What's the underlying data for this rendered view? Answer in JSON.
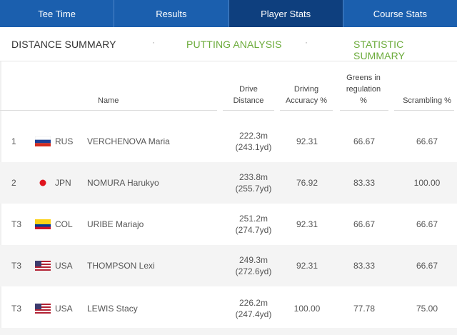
{
  "tabs": [
    {
      "label": "Tee Time",
      "active": false
    },
    {
      "label": "Results",
      "active": false
    },
    {
      "label": "Player Stats",
      "active": true
    },
    {
      "label": "Course Stats",
      "active": false
    }
  ],
  "subnav": {
    "distance_summary": "DISTANCE SUMMARY",
    "putting_analysis": "PUTTING ANALYSIS",
    "statistic_summary": "STATISTIC SUMMARY",
    "separator": "·"
  },
  "table": {
    "headers": {
      "name": "Name",
      "drive_distance": [
        "Drive",
        "Distance"
      ],
      "driving_accuracy": [
        "Driving",
        "Accuracy %"
      ],
      "gir": [
        "Greens in",
        "regulation",
        "%"
      ],
      "scrambling": "Scrambling %"
    },
    "rows": [
      {
        "pos": "1",
        "country": "RUS",
        "flag": "rus",
        "name": "VERCHENOVA Maria",
        "dist_m": "222.3m",
        "dist_yd": "(243.1yd)",
        "accuracy": "92.31",
        "gir": "66.67",
        "scrambling": "66.67"
      },
      {
        "pos": "2",
        "country": "JPN",
        "flag": "jpn",
        "name": "NOMURA Harukyo",
        "dist_m": "233.8m",
        "dist_yd": "(255.7yd)",
        "accuracy": "76.92",
        "gir": "83.33",
        "scrambling": "100.00"
      },
      {
        "pos": "T3",
        "country": "COL",
        "flag": "col",
        "name": "URIBE Mariajo",
        "dist_m": "251.2m",
        "dist_yd": "(274.7yd)",
        "accuracy": "92.31",
        "gir": "66.67",
        "scrambling": "66.67"
      },
      {
        "pos": "T3",
        "country": "USA",
        "flag": "usa",
        "name": "THOMPSON Lexi",
        "dist_m": "249.3m",
        "dist_yd": "(272.6yd)",
        "accuracy": "92.31",
        "gir": "83.33",
        "scrambling": "66.67"
      },
      {
        "pos": "T3",
        "country": "USA",
        "flag": "usa",
        "name": "LEWIS Stacy",
        "dist_m": "226.2m",
        "dist_yd": "(247.4yd)",
        "accuracy": "100.00",
        "gir": "77.78",
        "scrambling": "75.00"
      }
    ]
  },
  "colors": {
    "tab_bar": "#1b5fae",
    "tab_active": "#0e3f7e",
    "subnav_link": "#6bab3a",
    "row_alt": "#f4f4f4"
  }
}
